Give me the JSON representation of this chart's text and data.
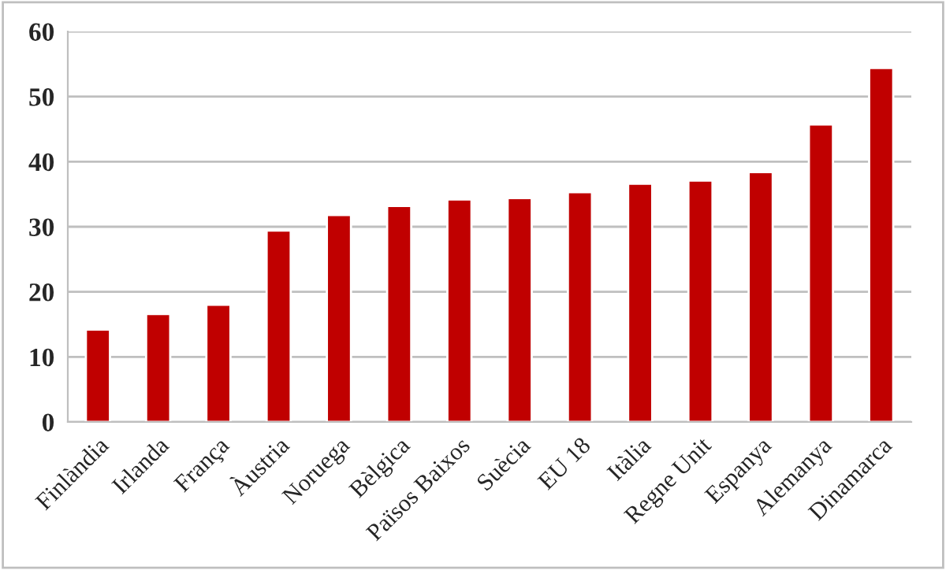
{
  "chart_data": {
    "type": "bar",
    "categories": [
      "Finlàndia",
      "Irlanda",
      "França",
      "Àustria",
      "Noruega",
      "Bèlgica",
      "Països Baixos",
      "Suècia",
      "EU 18",
      "Itàlia",
      "Regne Unit",
      "Espanya",
      "Alemanya",
      "Dinamarca"
    ],
    "values": [
      14.2,
      16.6,
      18.0,
      29.4,
      31.8,
      33.2,
      34.2,
      34.4,
      35.3,
      36.6,
      37.1,
      38.4,
      45.7,
      54.4
    ],
    "color": "#c00000",
    "ylim": [
      0,
      60
    ],
    "yticks": [
      0,
      10,
      20,
      30,
      40,
      50,
      60
    ],
    "grid": "y",
    "legend": false
  }
}
